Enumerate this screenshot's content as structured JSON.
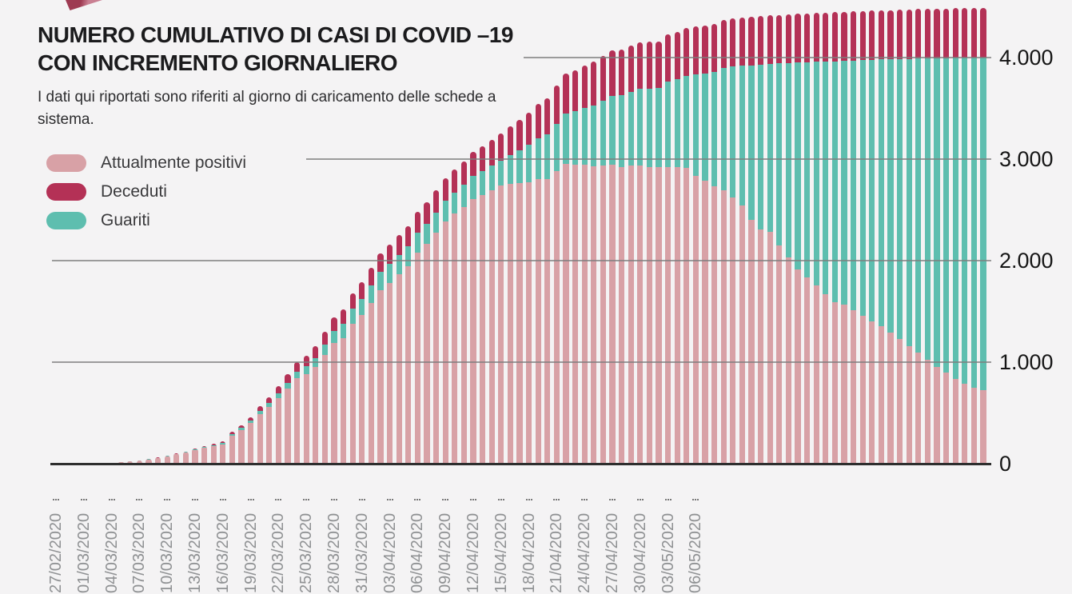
{
  "page": {
    "background": "#f4f3f4"
  },
  "header": {
    "logo_color": "#9e3a52",
    "title_line1": "NUMERO CUMULATIVO DI CASI DI COVID –19",
    "title_line2": "CON INCREMENTO GIORNALIERO",
    "subtitle": "I dati qui riportati sono riferiti al giorno di caricamento delle schede a sistema."
  },
  "legend": [
    {
      "label": "Attualmente positivi",
      "color": "#d8a1a6"
    },
    {
      "label": "Deceduti",
      "color": "#b43156"
    },
    {
      "label": "Guariti",
      "color": "#5ebeaf"
    }
  ],
  "chart_data": {
    "type": "bar",
    "stacked": true,
    "title": "NUMERO CUMULATIVO DI CASI DI COVID –19 CON INCREMENTO GIORNALIERO",
    "subtitle": "I dati qui riportati sono riferiti al giorno di caricamento delle schede a sistema.",
    "grid": "horizontal",
    "legend_position": "top-left",
    "ylim": [
      0,
      4500
    ],
    "y_ticks": [
      0,
      1000,
      2000,
      3000,
      4000
    ],
    "y_tick_labels": [
      "0",
      "1.000",
      "2.000",
      "3.000",
      "4.000"
    ],
    "x_tick_every_days": 3,
    "x_tick_labels": [
      "27/02/2020",
      "01/03/2020",
      "04/03/2020",
      "07/03/2020",
      "10/03/2020",
      "13/03/2020",
      "16/03/2020",
      "19/03/2020",
      "22/03/2020",
      "25/03/2020",
      "28/03/2020",
      "31/03/2020",
      "03/04/2020",
      "06/04/2020",
      "09/04/2020",
      "12/04/2020",
      "15/04/2020",
      "18/04/2020",
      "21/04/2020",
      "24/04/2020",
      "27/04/2020",
      "30/04/2020",
      "03/05/2020",
      "06/05/2020"
    ],
    "x": [
      "27/02/2020",
      "28/02/2020",
      "29/02/2020",
      "01/03/2020",
      "02/03/2020",
      "03/03/2020",
      "04/03/2020",
      "05/03/2020",
      "06/03/2020",
      "07/03/2020",
      "08/03/2020",
      "09/03/2020",
      "10/03/2020",
      "11/03/2020",
      "12/03/2020",
      "13/03/2020",
      "14/03/2020",
      "15/03/2020",
      "16/03/2020",
      "17/03/2020",
      "18/03/2020",
      "19/03/2020",
      "20/03/2020",
      "21/03/2020",
      "22/03/2020",
      "23/03/2020",
      "24/03/2020",
      "25/03/2020",
      "26/03/2020",
      "27/03/2020",
      "28/03/2020",
      "29/03/2020",
      "30/03/2020",
      "31/03/2020",
      "01/04/2020",
      "02/04/2020",
      "03/04/2020",
      "04/04/2020",
      "05/04/2020",
      "06/04/2020",
      "07/04/2020",
      "08/04/2020",
      "09/04/2020",
      "10/04/2020",
      "11/04/2020",
      "12/04/2020",
      "13/04/2020",
      "14/04/2020",
      "15/04/2020",
      "16/04/2020",
      "17/04/2020",
      "18/04/2020",
      "19/04/2020",
      "20/04/2020",
      "21/04/2020",
      "22/04/2020",
      "23/04/2020",
      "24/04/2020",
      "25/04/2020",
      "26/04/2020",
      "27/04/2020",
      "28/04/2020",
      "29/04/2020",
      "30/04/2020",
      "01/05/2020",
      "02/05/2020",
      "03/05/2020",
      "04/05/2020",
      "05/05/2020",
      "06/05/2020",
      "07/05/2020",
      "08/05/2020",
      "09/05/2020",
      "10/05/2020",
      "11/05/2020",
      "12/05/2020",
      "13/05/2020",
      "14/05/2020",
      "15/05/2020",
      "16/05/2020",
      "17/05/2020",
      "18/05/2020",
      "19/05/2020",
      "20/05/2020",
      "21/05/2020",
      "22/05/2020",
      "23/05/2020",
      "24/05/2020",
      "25/05/2020",
      "26/05/2020",
      "27/05/2020",
      "28/05/2020",
      "29/05/2020",
      "30/05/2020",
      "31/05/2020",
      "01/06/2020",
      "02/06/2020",
      "03/06/2020",
      "04/06/2020",
      "05/06/2020",
      "06/06/2020"
    ],
    "stack_order_bottom_to_top": [
      "Attualmente positivi",
      "Guariti",
      "Deceduti"
    ],
    "series": [
      {
        "name": "Attualmente positivi",
        "color": "#d8a1a6",
        "values": [
          1,
          2,
          3,
          4,
          6,
          8,
          10,
          16,
          22,
          31,
          41,
          56,
          74,
          91,
          110,
          137,
          157,
          172,
          192,
          277,
          332,
          398,
          490,
          562,
          648,
          743,
          841,
          880,
          952,
          1070,
          1186,
          1240,
          1377,
          1462,
          1586,
          1710,
          1780,
          1866,
          1948,
          2080,
          2167,
          2274,
          2385,
          2461,
          2528,
          2610,
          2649,
          2695,
          2741,
          2756,
          2762,
          2770,
          2802,
          2806,
          2879,
          2952,
          2942,
          2945,
          2933,
          2939,
          2944,
          2925,
          2936,
          2937,
          2923,
          2919,
          2925,
          2922,
          2915,
          2832,
          2791,
          2731,
          2691,
          2621,
          2544,
          2400,
          2307,
          2283,
          2152,
          2033,
          1910,
          1834,
          1752,
          1671,
          1594,
          1568,
          1511,
          1455,
          1403,
          1351,
          1293,
          1226,
          1158,
          1091,
          1022,
          954,
          895,
          837,
          789,
          750,
          722
        ]
      },
      {
        "name": "Deceduti",
        "color": "#b43156",
        "values": [
          0,
          0,
          0,
          0,
          0,
          0,
          0,
          0,
          1,
          1,
          1,
          2,
          2,
          3,
          4,
          5,
          8,
          11,
          15,
          20,
          26,
          34,
          45,
          55,
          70,
          82,
          94,
          105,
          115,
          125,
          135,
          145,
          155,
          165,
          174,
          182,
          190,
          195,
          200,
          205,
          210,
          215,
          220,
          225,
          230,
          235,
          245,
          255,
          265,
          283,
          301,
          320,
          338,
          356,
          375,
          390,
          405,
          420,
          430,
          438,
          445,
          450,
          455,
          460,
          462,
          463,
          465,
          467,
          469,
          470,
          471,
          472,
          473,
          474,
          475,
          477,
          477,
          478,
          478,
          479,
          480,
          480,
          481,
          481,
          482,
          482,
          483,
          483,
          484,
          484,
          485,
          485,
          486,
          486,
          487,
          487,
          488,
          488,
          488,
          489,
          489
        ]
      },
      {
        "name": "Guariti",
        "color": "#5ebeaf",
        "values": [
          0,
          0,
          0,
          0,
          0,
          0,
          0,
          0,
          2,
          2,
          3,
          3,
          4,
          5,
          6,
          8,
          10,
          12,
          15,
          18,
          22,
          26,
          32,
          38,
          45,
          55,
          65,
          78,
          90,
          105,
          122,
          135,
          148,
          160,
          170,
          178,
          185,
          189,
          192,
          195,
          198,
          201,
          205,
          211,
          218,
          225,
          231,
          238,
          245,
          283,
          322,
          370,
          403,
          436,
          470,
          498,
          527,
          556,
          597,
          639,
          681,
          705,
          729,
          753,
          770,
          778,
          838,
          863,
          907,
          1005,
          1053,
          1127,
          1206,
          1290,
          1376,
          1523,
          1626,
          1654,
          1790,
          1913,
          2040,
          2120,
          2205,
          2290,
          2370,
          2400,
          2460,
          2520,
          2575,
          2630,
          2690,
          2760,
          2830,
          2900,
          2970,
          3040,
          3100,
          3160,
          3210,
          3250,
          3280
        ]
      }
    ]
  }
}
